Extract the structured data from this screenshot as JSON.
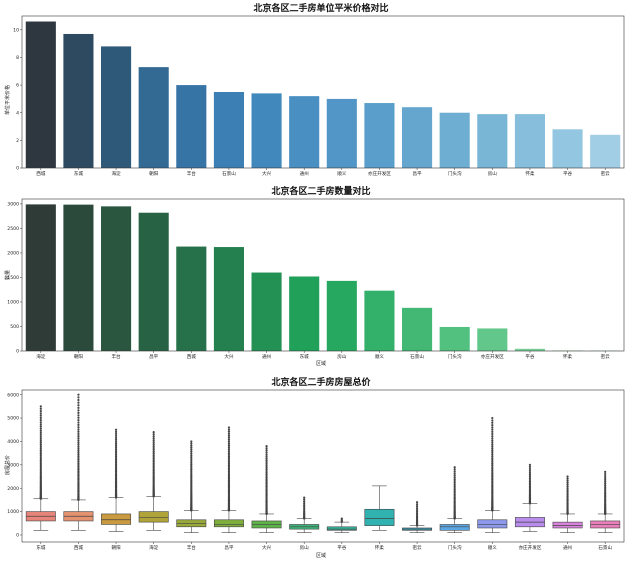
{
  "chart_data": [
    {
      "type": "bar",
      "title": "北京各区二手房单位平米价格对比",
      "xlabel": "",
      "ylabel": "单位平米价格",
      "ylim": [
        0,
        11
      ],
      "yticks": [
        0,
        2,
        4,
        6,
        8,
        10
      ],
      "categories": [
        "西城",
        "东城",
        "海淀",
        "朝阳",
        "丰台",
        "石景山",
        "大兴",
        "通州",
        "顺义",
        "亦庄开发区",
        "昌平",
        "门头沟",
        "房山",
        "怀柔",
        "平谷",
        "密云"
      ],
      "values": [
        10.6,
        9.7,
        8.8,
        7.3,
        6.0,
        5.5,
        5.4,
        5.2,
        5.0,
        4.7,
        4.4,
        4.0,
        3.9,
        3.9,
        2.8,
        2.4
      ],
      "colors": [
        "#2e3640",
        "#2e4a60",
        "#2f5979",
        "#326a94",
        "#3774a6",
        "#3b7fb4",
        "#4188bd",
        "#4a8fc2",
        "#5196c6",
        "#5a9ecb",
        "#64a6ce",
        "#6eaed2",
        "#79b6d6",
        "#86bedb",
        "#93c6e0",
        "#a2cee5"
      ]
    },
    {
      "type": "bar",
      "title": "北京各区二手房数量对比",
      "xlabel": "区域",
      "ylabel": "数量",
      "ylim": [
        0,
        3100
      ],
      "yticks": [
        0,
        500,
        1000,
        1500,
        2000,
        2500,
        3000
      ],
      "categories": [
        "海淀",
        "朝阳",
        "丰台",
        "昌平",
        "西城",
        "大兴",
        "通州",
        "东城",
        "房山",
        "顺义",
        "石景山",
        "门头沟",
        "亦庄开发区",
        "平谷",
        "怀柔",
        "密云"
      ],
      "values": [
        2990,
        2985,
        2950,
        2820,
        2130,
        2120,
        1600,
        1520,
        1430,
        1230,
        880,
        490,
        460,
        45,
        10,
        8
      ],
      "colors": [
        "#2f3b36",
        "#2c4a3c",
        "#2a5640",
        "#286245",
        "#26704a",
        "#24804f",
        "#239054",
        "#21a05a",
        "#26a860",
        "#33b06a",
        "#42b874",
        "#52c07f",
        "#62c78a",
        "#74cf96",
        "#88d6a3",
        "#9cddb0"
      ]
    },
    {
      "type": "box",
      "title": "北京各区二手房房屋总价",
      "xlabel": "区域",
      "ylabel": "房屋总价",
      "ylim": [
        -300,
        6200
      ],
      "yticks": [
        0,
        1000,
        2000,
        3000,
        4000,
        5000,
        6000
      ],
      "categories": [
        "东城",
        "西城",
        "朝阳",
        "海淀",
        "丰台",
        "昌平",
        "大兴",
        "房山",
        "平谷",
        "怀柔",
        "密云",
        "门头沟",
        "顺义",
        "亦庄开发区",
        "通州",
        "石景山"
      ],
      "stats": [
        {
          "min": 200,
          "q1": 600,
          "median": 800,
          "q3": 1000,
          "max": 1550,
          "outlier_max": 5500
        },
        {
          "min": 200,
          "q1": 600,
          "median": 800,
          "q3": 1000,
          "max": 1500,
          "outlier_max": 6000
        },
        {
          "min": 150,
          "q1": 450,
          "median": 650,
          "q3": 900,
          "max": 1600,
          "outlier_max": 4500
        },
        {
          "min": 200,
          "q1": 550,
          "median": 750,
          "q3": 1000,
          "max": 1650,
          "outlier_max": 4400
        },
        {
          "min": 100,
          "q1": 350,
          "median": 500,
          "q3": 650,
          "max": 1050,
          "outlier_max": 4000
        },
        {
          "min": 100,
          "q1": 350,
          "median": 450,
          "q3": 650,
          "max": 1050,
          "outlier_max": 4600
        },
        {
          "min": 100,
          "q1": 300,
          "median": 450,
          "q3": 600,
          "max": 900,
          "outlier_max": 3800
        },
        {
          "min": 100,
          "q1": 250,
          "median": 350,
          "q3": 450,
          "max": 700,
          "outlier_max": 1600
        },
        {
          "min": 100,
          "q1": 200,
          "median": 250,
          "q3": 350,
          "max": 550,
          "outlier_max": 700
        },
        {
          "min": 200,
          "q1": 400,
          "median": 700,
          "q3": 1100,
          "max": 2100,
          "outlier_max": null
        },
        {
          "min": 100,
          "q1": 200,
          "median": 250,
          "q3": 300,
          "max": 400,
          "outlier_max": 1400
        },
        {
          "min": 100,
          "q1": 200,
          "median": 350,
          "q3": 450,
          "max": 700,
          "outlier_max": 2900
        },
        {
          "min": 100,
          "q1": 300,
          "median": 450,
          "q3": 650,
          "max": 1050,
          "outlier_max": 5000
        },
        {
          "min": 150,
          "q1": 350,
          "median": 550,
          "q3": 750,
          "max": 1350,
          "outlier_max": 3000
        },
        {
          "min": 100,
          "q1": 300,
          "median": 400,
          "q3": 550,
          "max": 900,
          "outlier_max": 2500
        },
        {
          "min": 100,
          "q1": 300,
          "median": 450,
          "q3": 600,
          "max": 900,
          "outlier_max": 2700
        }
      ],
      "colors": [
        "#e8857b",
        "#e59270",
        "#c99a40",
        "#b0a33a",
        "#98a83a",
        "#7fae3c",
        "#5fb24a",
        "#3db57a",
        "#33b49a",
        "#2fb2b0",
        "#36aecb",
        "#5aa6e3",
        "#8d9aeb",
        "#b88deb",
        "#d884dc",
        "#e87fb8"
      ]
    }
  ]
}
